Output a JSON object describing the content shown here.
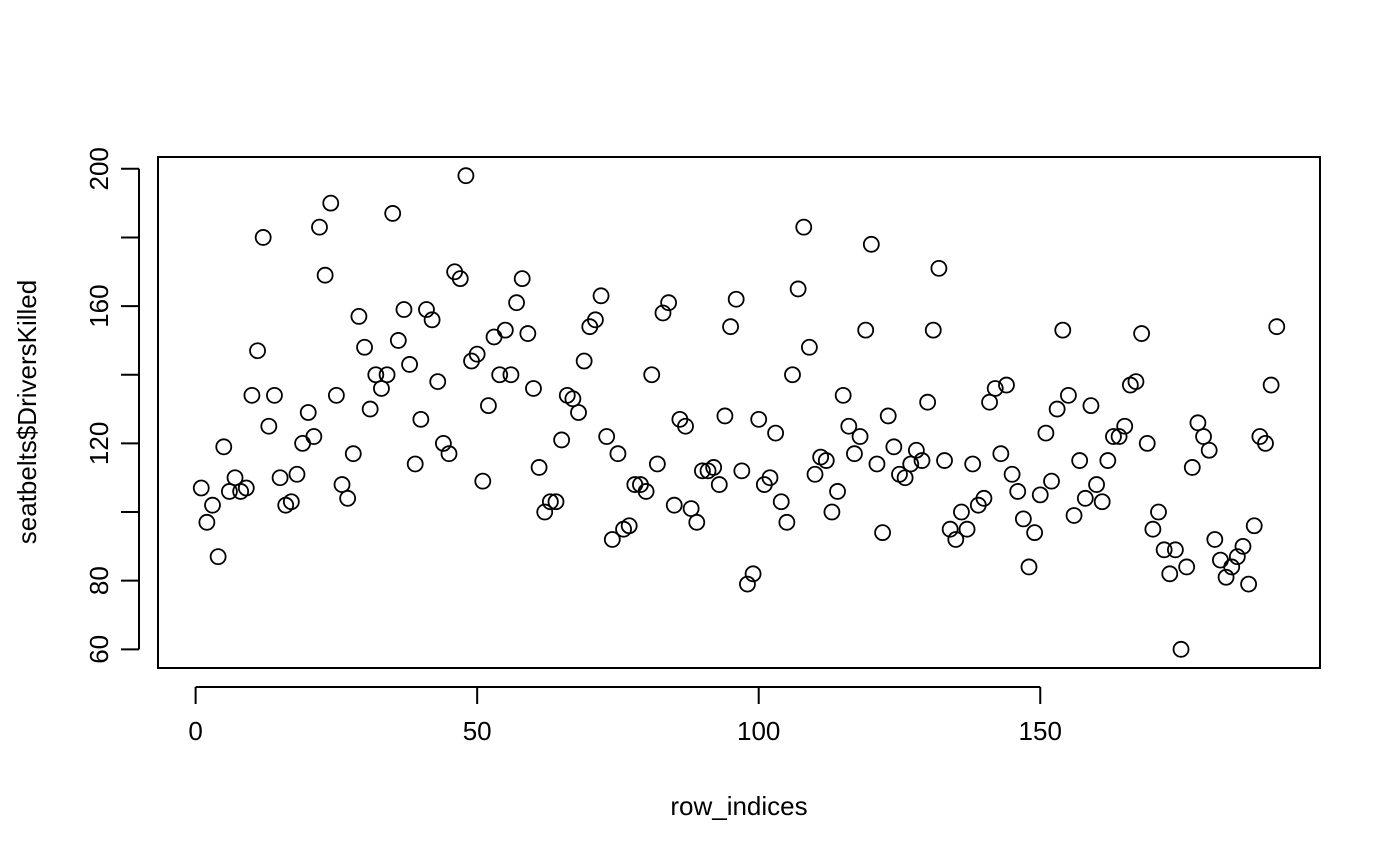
{
  "chart_data": {
    "type": "scatter",
    "title": "",
    "xlabel": "row_indices",
    "ylabel": "seatbelts$DriversKilled",
    "xlim": [
      -6.68,
      199.68
    ],
    "ylim": [
      54.56,
      203.44
    ],
    "xticks": [
      0,
      50,
      100,
      150
    ],
    "yticks": [
      60,
      80,
      120,
      160,
      200
    ],
    "grid": false,
    "legend": "none",
    "point_color": "#000000",
    "series": [
      {
        "x": [
          1,
          2,
          3,
          4,
          5,
          6,
          7,
          8,
          9,
          10,
          11,
          12,
          13,
          14,
          15,
          16,
          17,
          18,
          19,
          20,
          21,
          22,
          23,
          24,
          25,
          26,
          27,
          28,
          29,
          30,
          31,
          32,
          33,
          34,
          35,
          36,
          37,
          38,
          39,
          40,
          41,
          42,
          43,
          44,
          45,
          46,
          47,
          48,
          49,
          50,
          51,
          52,
          53,
          54,
          55,
          56,
          57,
          58,
          59,
          60,
          61,
          62,
          63,
          64,
          65,
          66,
          67,
          68,
          69,
          70,
          71,
          72,
          73,
          74,
          75,
          76,
          77,
          78,
          79,
          80,
          81,
          82,
          83,
          84,
          85,
          86,
          87,
          88,
          89,
          90,
          91,
          92,
          93,
          94,
          95,
          96,
          97,
          98,
          99,
          100,
          101,
          102,
          103,
          104,
          105,
          106,
          107,
          108,
          109,
          110,
          111,
          112,
          113,
          114,
          115,
          116,
          117,
          118,
          119,
          120,
          121,
          122,
          123,
          124,
          125,
          126,
          127,
          128,
          129,
          130,
          131,
          132,
          133,
          134,
          135,
          136,
          137,
          138,
          139,
          140,
          141,
          142,
          143,
          144,
          145,
          146,
          147,
          148,
          149,
          150,
          151,
          152,
          153,
          154,
          155,
          156,
          157,
          158,
          159,
          160,
          161,
          162,
          163,
          164,
          165,
          166,
          167,
          168,
          169,
          170,
          171,
          172,
          173,
          174,
          175,
          176,
          177,
          178,
          179,
          180,
          181,
          182,
          183,
          184,
          185,
          186,
          187,
          188,
          189,
          190,
          191,
          192
        ],
        "y": [
          107,
          97,
          102,
          87,
          119,
          106,
          110,
          106,
          107,
          134,
          147,
          180,
          125,
          134,
          110,
          102,
          103,
          111,
          120,
          129,
          122,
          183,
          169,
          190,
          134,
          108,
          104,
          117,
          157,
          148,
          130,
          140,
          136,
          140,
          187,
          150,
          159,
          143,
          114,
          127,
          159,
          156,
          138,
          120,
          117,
          170,
          168,
          198,
          144,
          146,
          109,
          131,
          151,
          140,
          153,
          140,
          161,
          168,
          152,
          136,
          113,
          100,
          103,
          103,
          121,
          134,
          133,
          129,
          144,
          154,
          156,
          163,
          122,
          92,
          117,
          95,
          96,
          108,
          108,
          106,
          140,
          114,
          158,
          161,
          102,
          127,
          125,
          101,
          97,
          112,
          112,
          113,
          108,
          128,
          154,
          162,
          112,
          79,
          82,
          127,
          108,
          110,
          123,
          103,
          97,
          140,
          165,
          183,
          148,
          111,
          116,
          115,
          100,
          106,
          134,
          125,
          117,
          122,
          153,
          178,
          114,
          94,
          128,
          119,
          111,
          110,
          114,
          118,
          115,
          132,
          153,
          171,
          115,
          95,
          92,
          100,
          95,
          114,
          102,
          104,
          132,
          136,
          117,
          137,
          111,
          106,
          98,
          84,
          94,
          105,
          123,
          109,
          130,
          153,
          134,
          99,
          115,
          104,
          131,
          108,
          103,
          115,
          122,
          122,
          125,
          137,
          138,
          152,
          120,
          95,
          100,
          89,
          82,
          89,
          60,
          84,
          113,
          126,
          122,
          118,
          92,
          86,
          81,
          84,
          87,
          90,
          79,
          96,
          122,
          120,
          137,
          154
        ]
      }
    ]
  }
}
